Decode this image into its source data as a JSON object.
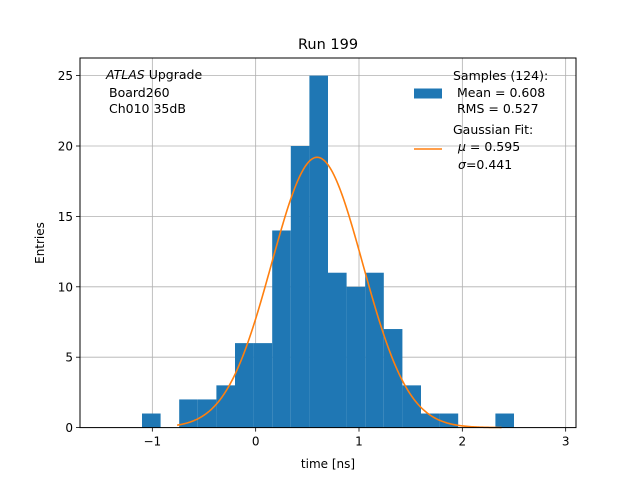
{
  "chart_data": {
    "type": "bar",
    "title": "Run 199",
    "xlabel": "time [ns]",
    "ylabel": "Entries",
    "xlim": [
      -1.7,
      3.1
    ],
    "ylim": [
      0,
      26.25
    ],
    "grid": true,
    "xticks": [
      -1,
      0,
      1,
      2,
      3
    ],
    "yticks": [
      0,
      5,
      10,
      15,
      20,
      25
    ],
    "bins": [
      {
        "x0": -1.1,
        "x1": -0.92,
        "value": 1
      },
      {
        "x0": -0.92,
        "x1": -0.74,
        "value": 0
      },
      {
        "x0": -0.74,
        "x1": -0.56,
        "value": 2
      },
      {
        "x0": -0.56,
        "x1": -0.38,
        "value": 2
      },
      {
        "x0": -0.38,
        "x1": -0.2,
        "value": 3
      },
      {
        "x0": -0.2,
        "x1": -0.02,
        "value": 6
      },
      {
        "x0": -0.02,
        "x1": 0.16,
        "value": 6
      },
      {
        "x0": 0.16,
        "x1": 0.34,
        "value": 14
      },
      {
        "x0": 0.34,
        "x1": 0.52,
        "value": 20
      },
      {
        "x0": 0.52,
        "x1": 0.7,
        "value": 25
      },
      {
        "x0": 0.7,
        "x1": 0.88,
        "value": 11
      },
      {
        "x0": 0.88,
        "x1": 1.06,
        "value": 10
      },
      {
        "x0": 1.06,
        "x1": 1.24,
        "value": 11
      },
      {
        "x0": 1.24,
        "x1": 1.42,
        "value": 7
      },
      {
        "x0": 1.42,
        "x1": 1.6,
        "value": 3
      },
      {
        "x0": 1.6,
        "x1": 1.78,
        "value": 1
      },
      {
        "x0": 1.78,
        "x1": 1.96,
        "value": 1
      },
      {
        "x0": 1.96,
        "x1": 2.14,
        "value": 0
      },
      {
        "x0": 2.14,
        "x1": 2.32,
        "value": 0
      },
      {
        "x0": 2.32,
        "x1": 2.5,
        "value": 1
      }
    ],
    "fit": {
      "amplitude": 19.2,
      "mu": 0.595,
      "sigma": 0.441,
      "x_range": [
        -0.76,
        2.38
      ]
    },
    "colors": {
      "hist": "#1f77b4",
      "fit": "#ff7f0e",
      "grid": "#b0b0b0"
    },
    "legend_position": "top-right",
    "legend": {
      "samples_line1": "Samples (124):",
      "samples_line2": "Mean = 0.608",
      "samples_line3": "RMS = 0.527",
      "fit_line1": "Gaussian Fit:",
      "fit_mu_symbol": "μ",
      "fit_mu_value": " = 0.595",
      "fit_sigma_symbol": "σ",
      "fit_sigma_value": "=0.441"
    },
    "annotation": {
      "experiment": "ATLAS",
      "suffix": " Upgrade",
      "board": "Board260",
      "channel": "Ch010 35dB"
    }
  }
}
